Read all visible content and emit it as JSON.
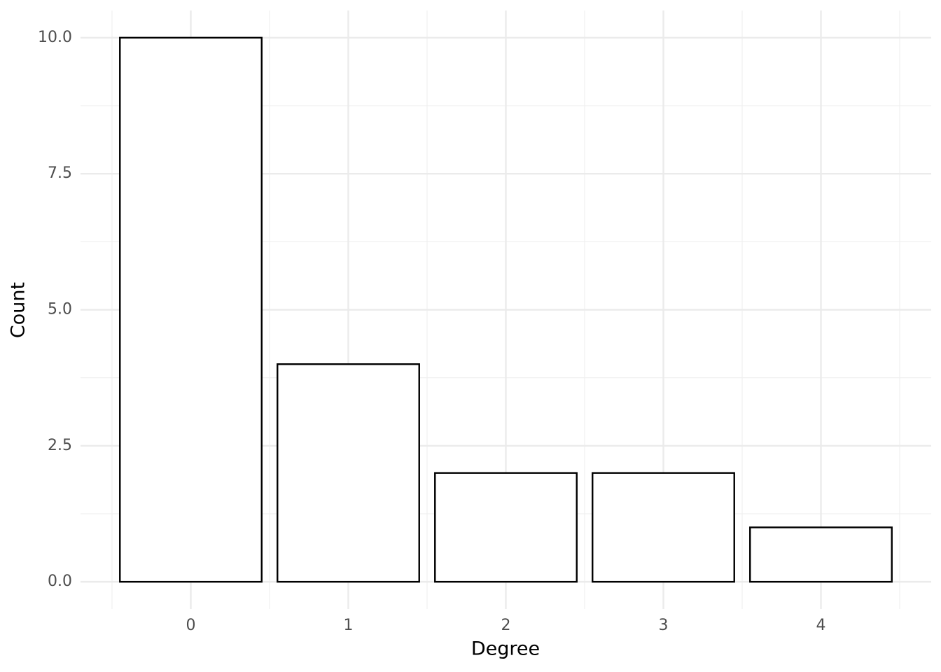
{
  "chart_data": {
    "type": "bar",
    "x_label": "Degree",
    "y_label": "Count",
    "x": [
      0,
      1,
      2,
      3,
      4
    ],
    "values": [
      10,
      4,
      2,
      2,
      1
    ],
    "color": "#ffffff",
    "edgecolor": "#000000",
    "xlim": [
      -0.7,
      4.7
    ],
    "xticks": [
      0,
      1,
      2,
      3,
      4
    ],
    "ylim": [
      -0.5,
      10.5
    ],
    "yticks": [
      {
        "value": 0,
        "label": "0.0"
      },
      2.5,
      {
        "value": 5,
        "label": "5.0"
      },
      7.5,
      {
        "value": 10,
        "label": "10.0"
      }
    ],
    "grid": true
  }
}
